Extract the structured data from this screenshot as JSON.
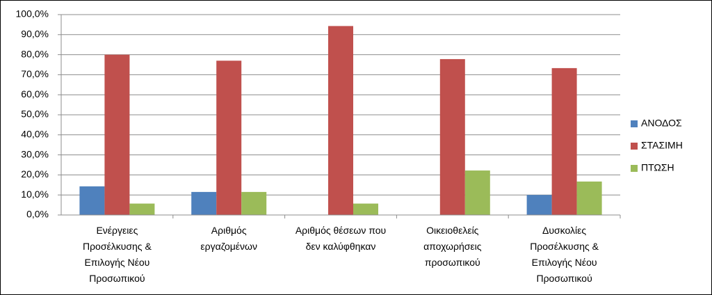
{
  "chart_data": {
    "type": "bar",
    "categories": [
      "Ενέργειες\nΠροσέλκυσης &\nΕπιλογής Νέου\nΠροσωπικού",
      "Αριθμός\nεργαζομένων",
      "Αριθμός θέσεων που\nδεν καλύφθηκαν",
      "Οικειοθελείς\nαποχωρήσεις\nπροσωπικού",
      "Δυσκολίες\nΠροσέλκυσης &\nΕπιλογής Νέου\nΠροσωπικού"
    ],
    "series": [
      {
        "name": "ΑΝΟΔΟΣ",
        "color": "#4f81bd",
        "values": [
          14.3,
          11.5,
          0,
          0,
          10.0
        ]
      },
      {
        "name": "ΣΤΑΣΙΜΗ",
        "color": "#c0504d",
        "values": [
          80.0,
          77.0,
          94.3,
          77.8,
          73.3
        ]
      },
      {
        "name": "ΠΤΩΣΗ",
        "color": "#9bbb59",
        "values": [
          5.7,
          11.5,
          5.7,
          22.2,
          16.7
        ]
      }
    ],
    "ylim": [
      0,
      100
    ],
    "yticks": [
      {
        "value": 0,
        "label": "0,0%"
      },
      {
        "value": 10,
        "label": "10,0%"
      },
      {
        "value": 20,
        "label": "20,0%"
      },
      {
        "value": 30,
        "label": "30,0%"
      },
      {
        "value": 40,
        "label": "40,0%"
      },
      {
        "value": 50,
        "label": "50,0%"
      },
      {
        "value": 60,
        "label": "60,0%"
      },
      {
        "value": 70,
        "label": "70,0%"
      },
      {
        "value": 80,
        "label": "80,0%"
      },
      {
        "value": 90,
        "label": "90,0%"
      },
      {
        "value": 100,
        "label": "100,0%"
      }
    ],
    "grid": true,
    "legend": "right"
  }
}
